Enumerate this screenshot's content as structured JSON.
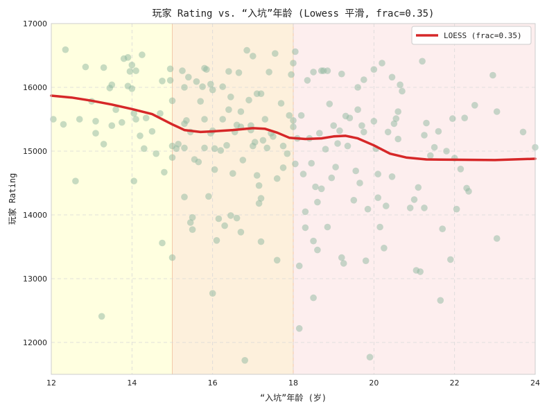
{
  "chart_data": {
    "type": "scatter",
    "title": "玩家 Rating vs. “入坑”年龄 (Lowess 平滑, frac=0.35)",
    "xlabel": "“入坑”年龄 (岁)",
    "ylabel": "玩家 Rating",
    "xlim": [
      12,
      24
    ],
    "ylim": [
      11500,
      17000
    ],
    "xticks": [
      12,
      14,
      16,
      18,
      20,
      22,
      24
    ],
    "yticks": [
      12000,
      13000,
      14000,
      15000,
      16000,
      17000
    ],
    "grid": true,
    "legend_position": "top-right",
    "bands": [
      {
        "from": 12,
        "to": 15,
        "color": "#ffffe0"
      },
      {
        "from": 15,
        "to": 18,
        "color": "#fdf0dc"
      },
      {
        "from": 18,
        "to": 24,
        "color": "#fdeeee"
      }
    ],
    "band_edge_color": "#f3c9a8",
    "point_color": "#8fb8a0",
    "line_color": "#d62728",
    "series": [
      {
        "name": "LOESS (frac=0.35)",
        "kind": "line",
        "points": [
          [
            12,
            15870
          ],
          [
            12.5,
            15840
          ],
          [
            13,
            15790
          ],
          [
            13.5,
            15730
          ],
          [
            14,
            15660
          ],
          [
            14.5,
            15580
          ],
          [
            15,
            15420
          ],
          [
            15.3,
            15330
          ],
          [
            15.7,
            15300
          ],
          [
            16,
            15310
          ],
          [
            16.5,
            15330
          ],
          [
            17,
            15360
          ],
          [
            17.3,
            15350
          ],
          [
            17.6,
            15290
          ],
          [
            17.9,
            15210
          ],
          [
            18.3,
            15190
          ],
          [
            18.7,
            15200
          ],
          [
            19,
            15230
          ],
          [
            19.3,
            15240
          ],
          [
            19.6,
            15200
          ],
          [
            20,
            15090
          ],
          [
            20.4,
            14960
          ],
          [
            20.8,
            14900
          ],
          [
            21.3,
            14870
          ],
          [
            22,
            14865
          ],
          [
            23,
            14860
          ],
          [
            24,
            14880
          ]
        ]
      },
      {
        "name": "points",
        "kind": "scatter",
        "points": [
          [
            12.05,
            15500
          ],
          [
            12.3,
            15420
          ],
          [
            12.35,
            16590
          ],
          [
            12.6,
            14530
          ],
          [
            12.7,
            15500
          ],
          [
            12.85,
            16320
          ],
          [
            13,
            15780
          ],
          [
            13.1,
            15470
          ],
          [
            13.1,
            15280
          ],
          [
            13.25,
            12410
          ],
          [
            13.3,
            16310
          ],
          [
            13.3,
            15110
          ],
          [
            13.45,
            15990
          ],
          [
            13.5,
            15400
          ],
          [
            13.5,
            16040
          ],
          [
            13.6,
            15650
          ],
          [
            13.75,
            15450
          ],
          [
            13.8,
            16450
          ],
          [
            13.9,
            16470
          ],
          [
            13.9,
            16020
          ],
          [
            13.95,
            16250
          ],
          [
            14,
            16350
          ],
          [
            14,
            15980
          ],
          [
            14.05,
            15590
          ],
          [
            14.05,
            14530
          ],
          [
            14.1,
            15500
          ],
          [
            14.1,
            16260
          ],
          [
            14.2,
            15240
          ],
          [
            14.25,
            16510
          ],
          [
            14.3,
            15040
          ],
          [
            14.35,
            15520
          ],
          [
            14.5,
            15310
          ],
          [
            14.6,
            14960
          ],
          [
            14.7,
            15590
          ],
          [
            14.75,
            16100
          ],
          [
            14.75,
            13560
          ],
          [
            14.8,
            14670
          ],
          [
            14.95,
            16290
          ],
          [
            14.95,
            16110
          ],
          [
            15,
            15790
          ],
          [
            15,
            15080
          ],
          [
            15,
            14900
          ],
          [
            15,
            13330
          ],
          [
            15.1,
            15040
          ],
          [
            15.15,
            15110
          ],
          [
            15.25,
            16260
          ],
          [
            15.3,
            15430
          ],
          [
            15.3,
            16000
          ],
          [
            15.3,
            15050
          ],
          [
            15.3,
            14280
          ],
          [
            15.35,
            15480
          ],
          [
            15.4,
            16160
          ],
          [
            15.45,
            15300
          ],
          [
            15.45,
            13880
          ],
          [
            15.5,
            13770
          ],
          [
            15.5,
            13960
          ],
          [
            15.55,
            14870
          ],
          [
            15.6,
            16090
          ],
          [
            15.65,
            14830
          ],
          [
            15.7,
            15780
          ],
          [
            15.75,
            16010
          ],
          [
            15.8,
            15500
          ],
          [
            15.8,
            16300
          ],
          [
            15.8,
            15050
          ],
          [
            15.85,
            16280
          ],
          [
            15.9,
            14290
          ],
          [
            15.95,
            15280
          ],
          [
            15.95,
            16050
          ],
          [
            16,
            15320
          ],
          [
            16,
            15960
          ],
          [
            16,
            12770
          ],
          [
            16.05,
            14710
          ],
          [
            16.05,
            15040
          ],
          [
            16.1,
            13600
          ],
          [
            16.15,
            13940
          ],
          [
            16.2,
            15010
          ],
          [
            16.25,
            16010
          ],
          [
            16.25,
            15500
          ],
          [
            16.3,
            13830
          ],
          [
            16.35,
            15090
          ],
          [
            16.4,
            16250
          ],
          [
            16.4,
            15650
          ],
          [
            16.45,
            15850
          ],
          [
            16.45,
            13990
          ],
          [
            16.5,
            14650
          ],
          [
            16.55,
            15300
          ],
          [
            16.6,
            15410
          ],
          [
            16.6,
            13950
          ],
          [
            16.65,
            16230
          ],
          [
            16.7,
            15620
          ],
          [
            16.7,
            15380
          ],
          [
            16.7,
            13730
          ],
          [
            16.75,
            14860
          ],
          [
            16.8,
            11720
          ],
          [
            16.85,
            16580
          ],
          [
            16.9,
            15800
          ],
          [
            16.95,
            15330
          ],
          [
            16.95,
            15400
          ],
          [
            17,
            15080
          ],
          [
            17,
            16490
          ],
          [
            17.05,
            15140
          ],
          [
            17.1,
            15900
          ],
          [
            17.1,
            14620
          ],
          [
            17.15,
            14180
          ],
          [
            17.15,
            14460
          ],
          [
            17.2,
            15900
          ],
          [
            17.2,
            14260
          ],
          [
            17.2,
            13580
          ],
          [
            17.25,
            15170
          ],
          [
            17.3,
            15500
          ],
          [
            17.35,
            15050
          ],
          [
            17.4,
            16240
          ],
          [
            17.45,
            15280
          ],
          [
            17.5,
            15230
          ],
          [
            17.55,
            16530
          ],
          [
            17.6,
            13290
          ],
          [
            17.6,
            14570
          ],
          [
            17.7,
            15750
          ],
          [
            17.75,
            15080
          ],
          [
            17.75,
            14740
          ],
          [
            17.85,
            14960
          ],
          [
            17.9,
            15560
          ],
          [
            17.95,
            16200
          ],
          [
            18,
            15480
          ],
          [
            18,
            15380
          ],
          [
            18,
            16380
          ],
          [
            18.05,
            14800
          ],
          [
            18.05,
            16560
          ],
          [
            18.1,
            15200
          ],
          [
            18.15,
            12220
          ],
          [
            18.15,
            13200
          ],
          [
            18.2,
            15560
          ],
          [
            18.25,
            14640
          ],
          [
            18.3,
            14050
          ],
          [
            18.3,
            13800
          ],
          [
            18.35,
            16110
          ],
          [
            18.4,
            15200
          ],
          [
            18.45,
            14810
          ],
          [
            18.5,
            16240
          ],
          [
            18.5,
            13590
          ],
          [
            18.5,
            12700
          ],
          [
            18.55,
            14440
          ],
          [
            18.6,
            14200
          ],
          [
            18.6,
            13450
          ],
          [
            18.65,
            15280
          ],
          [
            18.7,
            14410
          ],
          [
            18.7,
            16260
          ],
          [
            18.75,
            16260
          ],
          [
            18.8,
            15030
          ],
          [
            18.85,
            16260
          ],
          [
            18.85,
            13810
          ],
          [
            18.9,
            15740
          ],
          [
            18.95,
            14580
          ],
          [
            19,
            15400
          ],
          [
            19.05,
            14750
          ],
          [
            19.1,
            15120
          ],
          [
            19.15,
            15320
          ],
          [
            19.2,
            16210
          ],
          [
            19.2,
            13330
          ],
          [
            19.25,
            13240
          ],
          [
            19.3,
            15550
          ],
          [
            19.35,
            15080
          ],
          [
            19.4,
            15520
          ],
          [
            19.5,
            14230
          ],
          [
            19.55,
            14690
          ],
          [
            19.6,
            16000
          ],
          [
            19.6,
            15650
          ],
          [
            19.65,
            14500
          ],
          [
            19.7,
            15400
          ],
          [
            19.75,
            15300
          ],
          [
            19.75,
            16120
          ],
          [
            19.8,
            13280
          ],
          [
            19.85,
            14090
          ],
          [
            19.9,
            11770
          ],
          [
            20,
            15470
          ],
          [
            20,
            16280
          ],
          [
            20.05,
            15040
          ],
          [
            20.1,
            14270
          ],
          [
            20.1,
            14640
          ],
          [
            20.15,
            13810
          ],
          [
            20.2,
            16380
          ],
          [
            20.25,
            13480
          ],
          [
            20.3,
            14140
          ],
          [
            20.35,
            15300
          ],
          [
            20.45,
            16160
          ],
          [
            20.45,
            14600
          ],
          [
            20.5,
            15430
          ],
          [
            20.55,
            15510
          ],
          [
            20.6,
            15620
          ],
          [
            20.6,
            15190
          ],
          [
            20.65,
            16040
          ],
          [
            20.7,
            15940
          ],
          [
            20.9,
            14110
          ],
          [
            21,
            14240
          ],
          [
            21.05,
            13130
          ],
          [
            21.1,
            14430
          ],
          [
            21.15,
            13110
          ],
          [
            21.2,
            16410
          ],
          [
            21.25,
            14110
          ],
          [
            21.25,
            15250
          ],
          [
            21.3,
            15440
          ],
          [
            21.4,
            14930
          ],
          [
            21.5,
            15060
          ],
          [
            21.6,
            15310
          ],
          [
            21.65,
            12660
          ],
          [
            21.7,
            13780
          ],
          [
            21.8,
            15000
          ],
          [
            21.9,
            13300
          ],
          [
            21.95,
            15510
          ],
          [
            22,
            14890
          ],
          [
            22.05,
            14090
          ],
          [
            22.15,
            14720
          ],
          [
            22.25,
            15520
          ],
          [
            22.3,
            14420
          ],
          [
            22.35,
            14370
          ],
          [
            22.5,
            15720
          ],
          [
            22.95,
            16190
          ],
          [
            23.05,
            15620
          ],
          [
            23.05,
            13630
          ],
          [
            23.7,
            15300
          ],
          [
            24,
            15060
          ]
        ]
      }
    ]
  }
}
